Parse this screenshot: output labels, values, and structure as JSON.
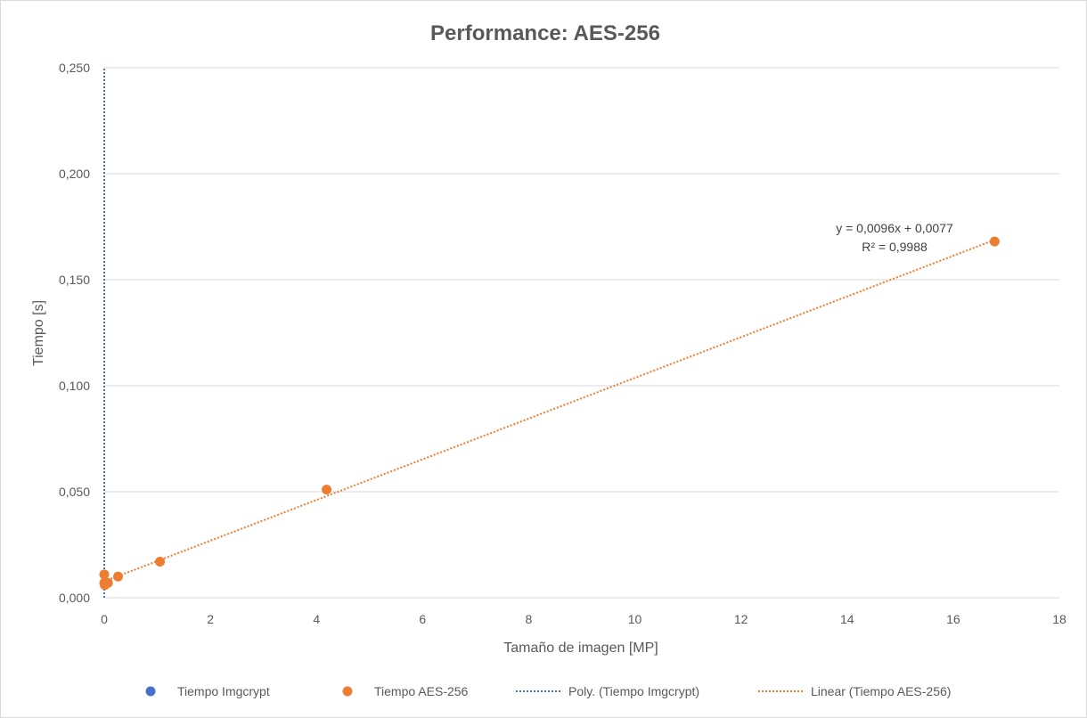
{
  "chart_data": {
    "type": "scatter",
    "title": "Performance: AES-256",
    "xlabel": "Tamaño de imagen [MP]",
    "ylabel": "Tiempo [s]",
    "xlim": [
      0,
      18
    ],
    "ylim": [
      0,
      0.25
    ],
    "x_ticks": [
      0,
      2,
      4,
      6,
      8,
      10,
      12,
      14,
      16,
      18
    ],
    "x_tick_labels": [
      "0",
      "2",
      "4",
      "6",
      "8",
      "10",
      "12",
      "14",
      "16",
      "18"
    ],
    "y_ticks": [
      0,
      0.05,
      0.1,
      0.15,
      0.2,
      0.25
    ],
    "y_tick_labels": [
      "0,000",
      "0,050",
      "0,100",
      "0,150",
      "0,200",
      "0,250"
    ],
    "grid": "horizontal",
    "legend_position": "bottom",
    "series": [
      {
        "name": "Tiempo Imgcrypt",
        "color": "#4472c4",
        "x": [],
        "y": []
      },
      {
        "name": "Tiempo AES-256",
        "color": "#ed7d31",
        "x": [
          0.0,
          0.0,
          0.01,
          0.07,
          0.26,
          1.05,
          4.19,
          16.78
        ],
        "y": [
          0.011,
          0.007,
          0.006,
          0.007,
          0.01,
          0.017,
          0.051,
          0.168
        ]
      }
    ],
    "trendlines": [
      {
        "name": "Poly. (Tiempo Imgcrypt)",
        "color": "#4472c4",
        "type": "polynomial",
        "points": [
          [
            0.0,
            0.0
          ],
          [
            0.0,
            0.25
          ]
        ]
      },
      {
        "name": "Linear (Tiempo AES-256)",
        "color": "#ed7d31",
        "type": "linear",
        "slope": 0.0096,
        "intercept": 0.0077,
        "x_range": [
          0,
          16.78
        ]
      }
    ],
    "annotations": [
      "y = 0,0096x + 0,0077",
      "R² = 0,9988"
    ]
  }
}
